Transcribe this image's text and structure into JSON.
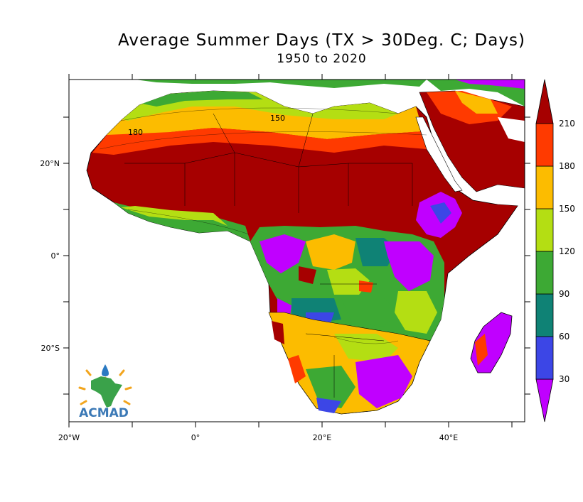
{
  "title": "Average Summer Days (TX > 30Deg. C; Days)",
  "subtitle": "1950 to 2020",
  "logo": {
    "text": "ACMAD",
    "colors": {
      "continent": "#3aa24a",
      "drop": "#2a79c2",
      "rays": "#f2a51e",
      "text": "#3b79b6"
    }
  },
  "axes": {
    "x_tick_labels": [
      {
        "label": "20°W",
        "lon": -20
      },
      {
        "label": "0°",
        "lon": 0
      },
      {
        "label": "20°E",
        "lon": 20
      },
      {
        "label": "40°E",
        "lon": 40
      }
    ],
    "y_tick_labels": [
      {
        "label": "20°N",
        "lat": 20
      },
      {
        "label": "0°",
        "lat": 0
      },
      {
        "label": "20°S",
        "lat": -20
      }
    ],
    "lon_range": [
      -20,
      52
    ],
    "lat_range": [
      -36,
      38
    ]
  },
  "colorbar": {
    "levels": [
      "30",
      "60",
      "90",
      "120",
      "150",
      "180",
      "210"
    ],
    "colors": [
      "#c000ff",
      "#3c46e6",
      "#0f8275",
      "#3da934",
      "#b4de13",
      "#fcbc00",
      "#ff3a00",
      "#a60000"
    ]
  },
  "chart_data": {
    "type": "map",
    "title": "Average Summer Days (TX > 30Deg. C; Days)",
    "subtitle": "1950 to 2020",
    "variable": "Summer days (TX > 30 °C)",
    "units": "Days",
    "period": "1950 to 2020",
    "region": "Africa",
    "color_levels": [
      30,
      60,
      90,
      120,
      150,
      180,
      210
    ],
    "contour_labels": [
      "150",
      "180"
    ]
  }
}
